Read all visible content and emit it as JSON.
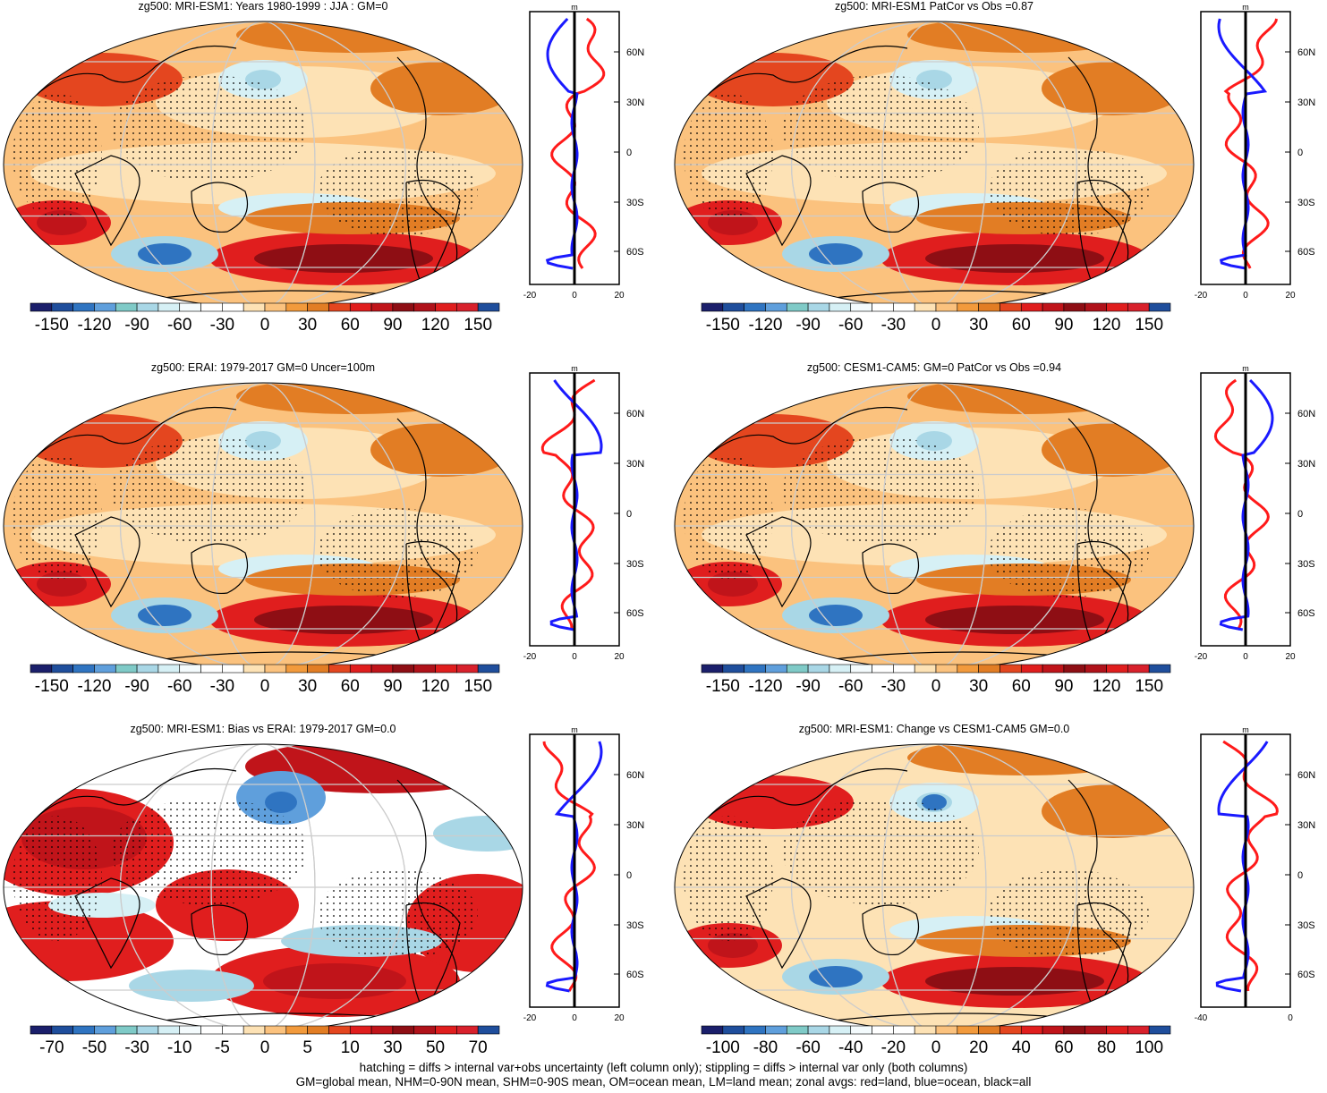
{
  "panels": [
    {
      "title": "zg500: MRI-ESM1: Years 1980-1999 : JJA : GM=0",
      "colorbar_labels": [
        "-150",
        "-120",
        "-90",
        "-60",
        "-30",
        "0",
        "30",
        "60",
        "90",
        "120",
        "150"
      ],
      "zonal_ticks": [
        "-20",
        "0",
        "20"
      ],
      "units": "m"
    },
    {
      "title": "zg500: MRI-ESM1 PatCor vs Obs =0.87",
      "colorbar_labels": [
        "-150",
        "-120",
        "-90",
        "-60",
        "-30",
        "0",
        "30",
        "60",
        "90",
        "120",
        "150"
      ],
      "zonal_ticks": [
        "-20",
        "0",
        "20"
      ],
      "units": "m"
    },
    {
      "title": "zg500: ERAI: 1979-2017 GM=0 Uncer=100m",
      "colorbar_labels": [
        "-150",
        "-120",
        "-90",
        "-60",
        "-30",
        "0",
        "30",
        "60",
        "90",
        "120",
        "150"
      ],
      "zonal_ticks": [
        "-20",
        "0",
        "20"
      ],
      "units": "m"
    },
    {
      "title": "zg500: CESM1-CAM5: GM=0 PatCor vs Obs =0.94",
      "colorbar_labels": [
        "-150",
        "-120",
        "-90",
        "-60",
        "-30",
        "0",
        "30",
        "60",
        "90",
        "120",
        "150"
      ],
      "zonal_ticks": [
        "-20",
        "0",
        "20"
      ],
      "units": "m"
    },
    {
      "title": "zg500: MRI-ESM1: Bias vs ERAI: 1979-2017 GM=0.0",
      "colorbar_labels": [
        "-70",
        "-50",
        "-30",
        "-10",
        "-5",
        "0",
        "5",
        "10",
        "30",
        "50",
        "70"
      ],
      "zonal_ticks": [
        "-20",
        "0",
        "20"
      ],
      "units": "m"
    },
    {
      "title": "zg500: MRI-ESM1: Change vs CESM1-CAM5 GM=0.0",
      "colorbar_labels": [
        "-100",
        "-80",
        "-60",
        "-40",
        "-20",
        "0",
        "20",
        "40",
        "60",
        "80",
        "100"
      ],
      "zonal_ticks": [
        "-40",
        "",
        "0"
      ],
      "units": "m"
    }
  ],
  "lat_labels": [
    "60N",
    "30N",
    "0",
    "30S",
    "60S"
  ],
  "palette": [
    "#1b1f6b",
    "#1f4e9c",
    "#2f74c1",
    "#5f9fdc",
    "#7fcac7",
    "#a9d7e6",
    "#d6f0f5",
    "#f4fbfd",
    "#ffffff",
    "#ffffff",
    "#fde2b5",
    "#fbc27e",
    "#f29a3c",
    "#e27d24",
    "#e4461f",
    "#e01e1e",
    "#c0141a",
    "#8e0e14",
    "#b0121a",
    "#e01e1e",
    "#d8212c",
    "#1f4e9c"
  ],
  "zonal_colors": {
    "land": "#ff1a1a",
    "ocean": "#1a1aff",
    "all": "#000000"
  },
  "footer": {
    "line1": "hatching = diffs > internal var+obs uncertainty (left column only); stippling = diffs > internal var only (both columns)",
    "line2": "GM=global mean, NHM=0-90N mean, SHM=0-90S mean, OM=ocean mean, LM=land mean; zonal avgs: red=land, blue=ocean, black=all"
  }
}
